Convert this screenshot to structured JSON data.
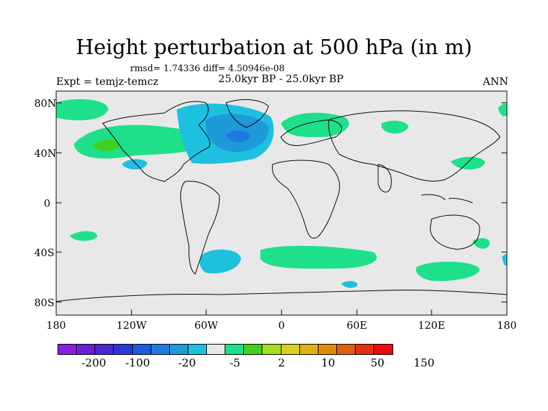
{
  "title": "Height perturbation at 500 hPa (in m)",
  "stats_text": "rmsd= 1.74336 diff= 4.50946e-08",
  "expt_label": "Expt = temjz-temcz",
  "period_label": "25.0kyr BP - 25.0kyr BP",
  "season_label": "ANN",
  "map": {
    "lon_range": [
      -180,
      180
    ],
    "lat_range": [
      -90,
      90
    ],
    "x_ticks": [
      "180",
      "120W",
      "60W",
      "0",
      "60E",
      "120E",
      "180"
    ],
    "y_ticks": [
      "80N",
      "40N",
      "0",
      "40S",
      "80S"
    ],
    "background_color": "#e8e8e8"
  },
  "colorbar": {
    "colors": [
      "#8a1ee0",
      "#6a1ed8",
      "#4a28d0",
      "#2a3ad8",
      "#1e5ae0",
      "#1e7ae0",
      "#1e9ad8",
      "#1ec0e0",
      "#e8e8e8",
      "#1ee08a",
      "#40d020",
      "#a0e020",
      "#d8d020",
      "#e0b010",
      "#e08a10",
      "#e06010",
      "#e03010",
      "#e80c0c"
    ],
    "labels": [
      "-200",
      "-100",
      "-20",
      "-5",
      "2",
      "10",
      "50",
      "150"
    ]
  }
}
